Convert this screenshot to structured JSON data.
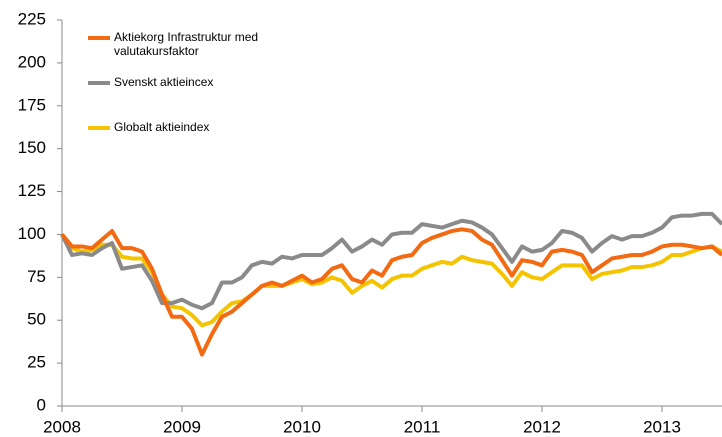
{
  "chart_data": {
    "type": "line",
    "x": [
      2008,
      2008.083,
      2008.167,
      2008.25,
      2008.333,
      2008.417,
      2008.5,
      2008.583,
      2008.667,
      2008.75,
      2008.833,
      2008.917,
      2009,
      2009.083,
      2009.167,
      2009.25,
      2009.333,
      2009.417,
      2009.5,
      2009.583,
      2009.667,
      2009.75,
      2009.833,
      2009.917,
      2010,
      2010.083,
      2010.167,
      2010.25,
      2010.333,
      2010.417,
      2010.5,
      2010.583,
      2010.667,
      2010.75,
      2010.833,
      2010.917,
      2011,
      2011.083,
      2011.167,
      2011.25,
      2011.333,
      2011.417,
      2011.5,
      2011.583,
      2011.667,
      2011.75,
      2011.833,
      2011.917,
      2012,
      2012.083,
      2012.167,
      2012.25,
      2012.333,
      2012.417,
      2012.5,
      2012.583,
      2012.667,
      2012.75,
      2012.833,
      2012.917,
      2013,
      2013.083,
      2013.167,
      2013.25,
      2013.333,
      2013.417,
      2013.5
    ],
    "series": [
      {
        "name": "Aktiekorg Infrastruktur med valutakursfaktor",
        "color": "#f26a12",
        "values": [
          100,
          93,
          93,
          92,
          97,
          102,
          92,
          92,
          90,
          80,
          65,
          52,
          52,
          45,
          30,
          42,
          52,
          55,
          60,
          65,
          70,
          72,
          70,
          73,
          76,
          72,
          74,
          80,
          82,
          74,
          72,
          79,
          76,
          85,
          87,
          88,
          95,
          98,
          100,
          102,
          103,
          102,
          97,
          94,
          85,
          76,
          85,
          84,
          82,
          90,
          91,
          90,
          88,
          78,
          82,
          86,
          87,
          88,
          88,
          90,
          93,
          94,
          94,
          93,
          92,
          93,
          88
        ]
      },
      {
        "name": "Svenskt aktieincex",
        "color": "#8a8a8a",
        "values": [
          100,
          88,
          89,
          88,
          92,
          95,
          80,
          81,
          82,
          73,
          60,
          60,
          62,
          59,
          57,
          60,
          72,
          72,
          75,
          82,
          84,
          83,
          87,
          86,
          88,
          88,
          88,
          92,
          97,
          90,
          93,
          97,
          94,
          100,
          101,
          101,
          106,
          105,
          104,
          106,
          108,
          107,
          104,
          100,
          92,
          84,
          93,
          90,
          91,
          95,
          102,
          101,
          98,
          90,
          95,
          99,
          97,
          99,
          99,
          101,
          104,
          110,
          111,
          111,
          112,
          112,
          106
        ]
      },
      {
        "name": "Globalt aktieindex",
        "color": "#f5c400",
        "values": [
          100,
          92,
          90,
          91,
          94,
          94,
          87,
          86,
          86,
          78,
          65,
          58,
          57,
          53,
          47,
          49,
          55,
          60,
          61,
          65,
          70,
          70,
          70,
          72,
          74,
          71,
          72,
          75,
          73,
          66,
          70,
          73,
          69,
          74,
          76,
          76,
          80,
          82,
          84,
          83,
          87,
          85,
          84,
          83,
          77,
          70,
          78,
          75,
          74,
          78,
          82,
          82,
          82,
          74,
          77,
          78,
          79,
          81,
          81,
          82,
          84,
          88,
          88,
          90,
          92,
          93,
          90
        ]
      }
    ],
    "xlim": [
      2008,
      2013.5
    ],
    "xticks": [
      2008,
      2009,
      2010,
      2011,
      2012,
      2013
    ],
    "ylim": [
      0,
      225
    ],
    "yticks": [
      0,
      25,
      50,
      75,
      100,
      125,
      150,
      175,
      200,
      225
    ],
    "legend": "upper left"
  }
}
